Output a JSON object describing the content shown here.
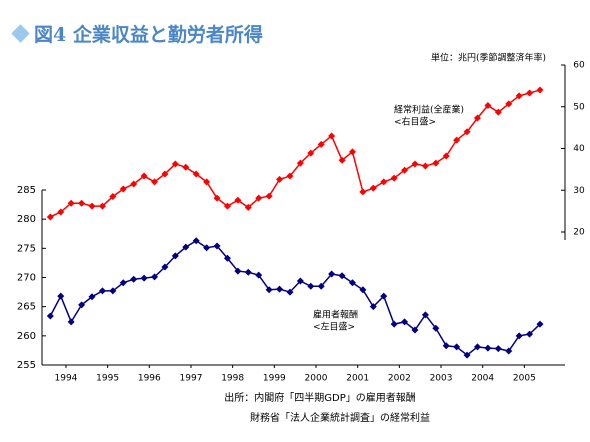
{
  "chart_data": {
    "type": "line",
    "title": "図4 企業収益と勤労者所得",
    "unit_label": "単位：兆円(季節調整済年率)",
    "x": [
      1994,
      1994.25,
      1994.5,
      1994.75,
      1995,
      1995.25,
      1995.5,
      1995.75,
      1996,
      1996.25,
      1996.5,
      1996.75,
      1997,
      1997.25,
      1997.5,
      1997.75,
      1998,
      1998.25,
      1998.5,
      1998.75,
      1999,
      1999.25,
      1999.5,
      1999.75,
      2000,
      2000.25,
      2000.5,
      2000.75,
      2001,
      2001.25,
      2001.5,
      2001.75,
      2002,
      2002.25,
      2002.5,
      2002.75,
      2003,
      2003.25,
      2003.5,
      2003.75,
      2004,
      2004.25,
      2004.5,
      2004.75,
      2005,
      2005.25,
      2005.5,
      2005.75
    ],
    "xlim": [
      1993.8,
      2006.35
    ],
    "xticks": [
      {
        "value": 1994.375,
        "label": "1994"
      },
      {
        "value": 1995.375,
        "label": "1995"
      },
      {
        "value": 1996.375,
        "label": "1996"
      },
      {
        "value": 1997.375,
        "label": "1997"
      },
      {
        "value": 1998.375,
        "label": "1998"
      },
      {
        "value": 1999.375,
        "label": "1999"
      },
      {
        "value": 2000.375,
        "label": "2000"
      },
      {
        "value": 2001.375,
        "label": "2001"
      },
      {
        "value": 2002.375,
        "label": "2002"
      },
      {
        "value": 2003.375,
        "label": "2003"
      },
      {
        "value": 2004.375,
        "label": "2004"
      },
      {
        "value": 2005.375,
        "label": "2005"
      }
    ],
    "ylim": [
      255,
      285
    ],
    "yticks": [
      255,
      260,
      265,
      270,
      275,
      280,
      285
    ],
    "y2lim": [
      20,
      60
    ],
    "y2ticks": [
      20,
      30,
      40,
      50,
      60
    ],
    "series": [
      {
        "color": "#ff0000",
        "axis": "y2",
        "values": [
          23.6,
          24.8,
          26.9,
          26.9,
          26.2,
          26.2,
          28.5,
          30.3,
          31.5,
          33.4,
          32.0,
          33.9,
          36.3,
          35.5,
          33.9,
          32.0,
          28.1,
          26.2,
          27.6,
          25.9,
          28.1,
          28.6,
          32.6,
          33.4,
          36.5,
          38.9,
          41.0,
          43.0,
          37.2,
          39.2,
          29.6,
          30.5,
          32.0,
          32.9,
          34.8,
          36.3,
          35.8,
          36.5,
          38.2,
          42.0,
          44.0,
          47.3,
          50.3,
          48.7,
          50.7,
          52.6,
          53.3,
          54.0
        ]
      },
      {
        "color": "#000080",
        "values": [
          263.4,
          266.8,
          262.4,
          265.3,
          266.7,
          267.7,
          267.7,
          269.1,
          269.7,
          269.9,
          270.1,
          271.8,
          273.7,
          275.2,
          276.3,
          275.1,
          275.4,
          273.3,
          271.1,
          270.9,
          270.4,
          267.9,
          268.0,
          267.5,
          269.4,
          268.5,
          268.5,
          270.6,
          270.3,
          269.1,
          267.9,
          265.0,
          266.8,
          262.0,
          262.4,
          261.0,
          263.6,
          261.3,
          258.3,
          258.1,
          256.7,
          258.1,
          257.9,
          257.8,
          257.4,
          260.0,
          260.3,
          262.0
        ]
      }
    ],
    "annotations": [
      "経常利益(全産業)",
      "<右目盛>",
      "雇用者報酬",
      "<左目盛>"
    ],
    "source": [
      "出所：内閣府「四半期GDP」の雇用者報酬",
      "財務省「法人企業統計調査」の経常利益"
    ]
  }
}
